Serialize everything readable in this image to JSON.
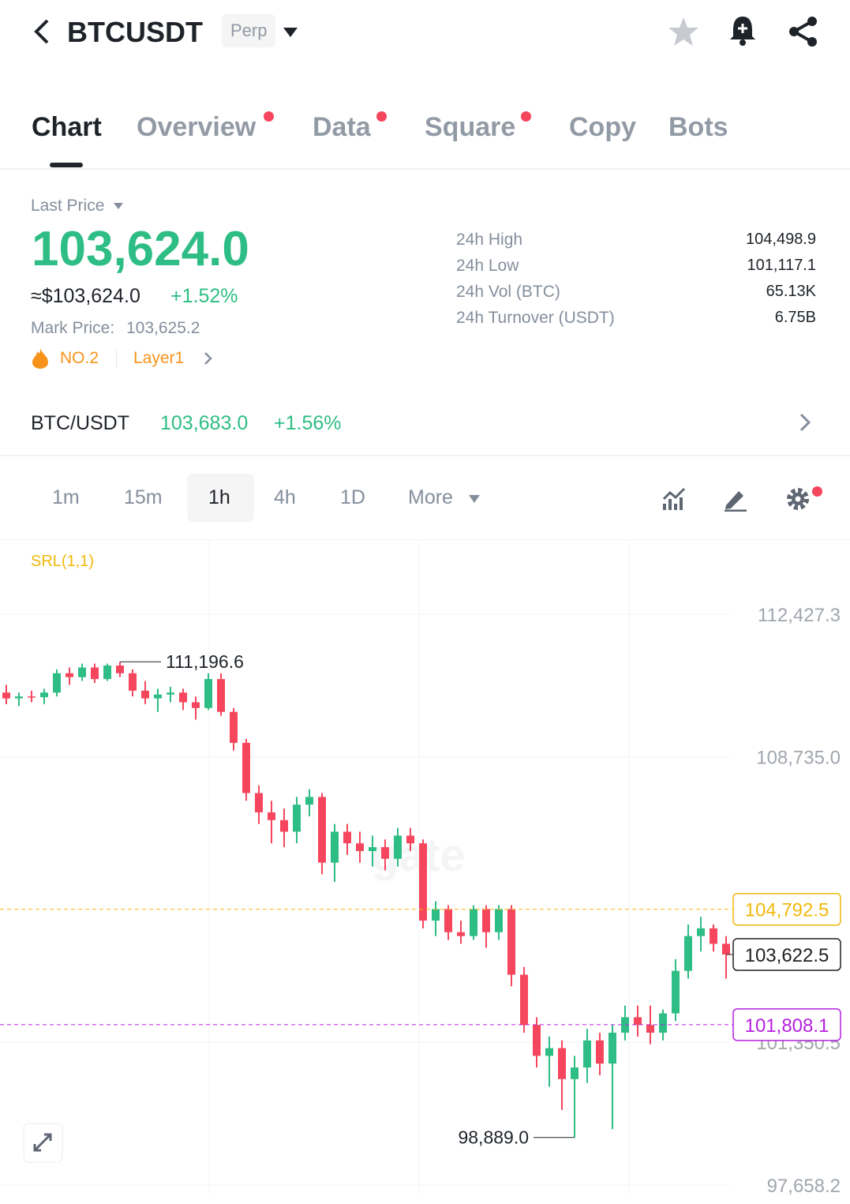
{
  "header": {
    "symbol": "BTCUSDT",
    "badge": "Perp"
  },
  "tabs": [
    "Chart",
    "Overview",
    "Data",
    "Square",
    "Copy",
    "Bots"
  ],
  "price": {
    "label": "Last Price",
    "last": "103,624.0",
    "usd": "≈$103,624.0",
    "change": "+1.52%",
    "mark_label": "Mark Price:",
    "mark": "103,625.2",
    "rank": "NO.2",
    "tag": "Layer1"
  },
  "stats": [
    {
      "label": "24h High",
      "value": "104,498.9"
    },
    {
      "label": "24h Low",
      "value": "101,117.1"
    },
    {
      "label": "24h Vol (BTC)",
      "value": "65.13K"
    },
    {
      "label": "24h Turnover (USDT)",
      "value": "6.75B"
    }
  ],
  "spot": {
    "pair": "BTC/USDT",
    "price": "103,683.0",
    "change": "+1.56%"
  },
  "intervals": [
    "1m",
    "15m",
    "1h",
    "4h",
    "1D",
    "More"
  ],
  "chart_data": {
    "type": "candlestick",
    "indicator": "SRL(1,1)",
    "ylim": [
      97433,
      114327
    ],
    "yticks": [
      {
        "value": 112427.3,
        "label": "112,427.3"
      },
      {
        "value": 108735.0,
        "label": "108,735.0"
      },
      {
        "value": 101350.5,
        "label": "101,350.5"
      },
      {
        "value": 97658.2,
        "label": "97,658.2"
      }
    ],
    "up_color": "#2ebd85",
    "down_color": "#f6465d",
    "ohlc": [
      [
        110400,
        110600,
        110100,
        110250
      ],
      [
        110250,
        110400,
        110050,
        110300
      ],
      [
        110300,
        110450,
        110150,
        110280
      ],
      [
        110280,
        110500,
        110100,
        110400
      ],
      [
        110400,
        111000,
        110300,
        110900
      ],
      [
        110900,
        111050,
        110600,
        110800
      ],
      [
        110800,
        111150,
        110700,
        111050
      ],
      [
        111050,
        111150,
        110650,
        110750
      ],
      [
        110750,
        111150,
        110700,
        111100
      ],
      [
        111100,
        111196.6,
        110800,
        110900
      ],
      [
        110900,
        111000,
        110300,
        110450
      ],
      [
        110450,
        110700,
        110100,
        110250
      ],
      [
        110250,
        110500,
        109900,
        110350
      ],
      [
        110350,
        110550,
        110150,
        110400
      ],
      [
        110400,
        110500,
        109950,
        110150
      ],
      [
        110150,
        110300,
        109700,
        110000
      ],
      [
        110000,
        110900,
        109950,
        110750
      ],
      [
        110750,
        110900,
        109800,
        109900
      ],
      [
        109900,
        110000,
        108900,
        109100
      ],
      [
        109100,
        109200,
        107600,
        107800
      ],
      [
        107800,
        108000,
        107000,
        107300
      ],
      [
        107300,
        107600,
        106500,
        107100
      ],
      [
        107100,
        107400,
        106400,
        106800
      ],
      [
        106800,
        107700,
        106500,
        107500
      ],
      [
        107500,
        107900,
        107200,
        107700
      ],
      [
        107700,
        107800,
        105700,
        106000
      ],
      [
        106000,
        107000,
        105500,
        106800
      ],
      [
        106800,
        107000,
        106200,
        106500
      ],
      [
        106500,
        106800,
        106000,
        106300
      ],
      [
        106300,
        106700,
        105900,
        106400
      ],
      [
        106400,
        106600,
        105800,
        106100
      ],
      [
        106100,
        106900,
        105900,
        106700
      ],
      [
        106700,
        106900,
        106300,
        106500
      ],
      [
        106500,
        106600,
        104300,
        104500
      ],
      [
        104500,
        105000,
        104100,
        104800
      ],
      [
        104800,
        104900,
        104000,
        104200
      ],
      [
        104200,
        104500,
        103900,
        104100
      ],
      [
        104100,
        104900,
        104000,
        104800
      ],
      [
        104800,
        104900,
        103800,
        104200
      ],
      [
        104200,
        104900,
        104000,
        104800
      ],
      [
        104800,
        104900,
        102800,
        103100
      ],
      [
        103100,
        103300,
        101600,
        101800
      ],
      [
        101800,
        102000,
        100700,
        101000
      ],
      [
        101000,
        101500,
        100200,
        101200
      ],
      [
        101200,
        101400,
        99600,
        100400
      ],
      [
        100400,
        101000,
        98889,
        100700
      ],
      [
        100700,
        101700,
        100300,
        101400
      ],
      [
        101400,
        101600,
        100500,
        100800
      ],
      [
        100800,
        101800,
        99100,
        101600
      ],
      [
        101600,
        102300,
        101400,
        102000
      ],
      [
        102000,
        102300,
        101500,
        101800
      ],
      [
        101800,
        102300,
        101300,
        101600
      ],
      [
        101600,
        102200,
        101400,
        102100
      ],
      [
        102100,
        103500,
        101900,
        103200
      ],
      [
        103200,
        104400,
        103000,
        104100
      ],
      [
        104100,
        104600,
        103700,
        104300
      ],
      [
        104300,
        104400,
        103700,
        103900
      ],
      [
        103900,
        104100,
        103000,
        103622.5
      ]
    ],
    "annotations": [
      {
        "value": 111196.6,
        "label": "111,196.6"
      },
      {
        "value": 98889.0,
        "label": "98,889.0"
      }
    ],
    "price_lines": [
      {
        "value": 104792.5,
        "label": "104,792.5",
        "color": "#f0b90b"
      },
      {
        "value": 103622.5,
        "label": "103,622.5",
        "color": "#222222"
      },
      {
        "value": 101808.1,
        "label": "101,808.1",
        "color": "#b620e0"
      }
    ]
  }
}
